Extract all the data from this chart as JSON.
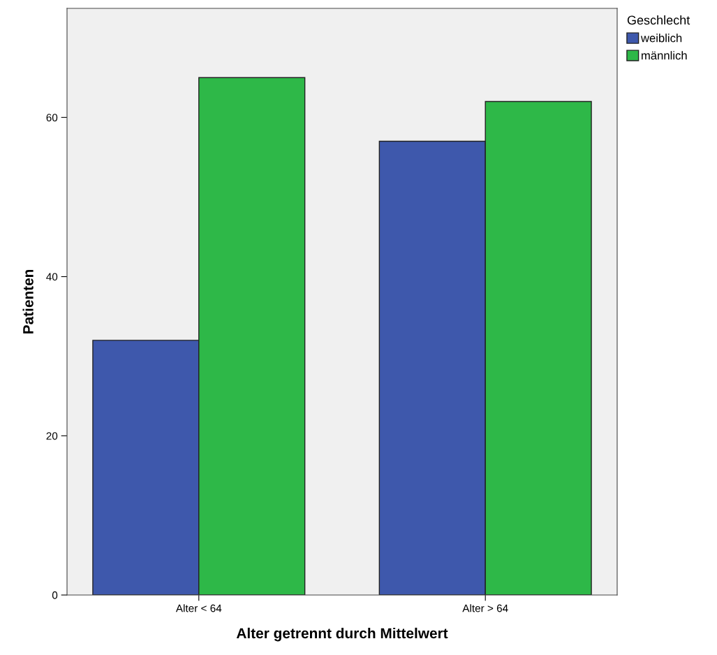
{
  "chart_data": {
    "type": "bar",
    "xlabel": "Alter getrennt durch Mittelwert",
    "ylabel": "Patienten",
    "legend_title": "Geschlecht",
    "categories": [
      "Alter < 64",
      "Alter > 64"
    ],
    "series": [
      {
        "name": "weiblich",
        "color": "#3e58ac",
        "values": [
          32,
          57
        ]
      },
      {
        "name": "männlich",
        "color": "#2eb848",
        "values": [
          65,
          62
        ]
      }
    ],
    "ylim": [
      0,
      73.7
    ],
    "yticks": [
      0,
      20,
      40,
      60
    ],
    "grid": false,
    "legend": "top right"
  }
}
